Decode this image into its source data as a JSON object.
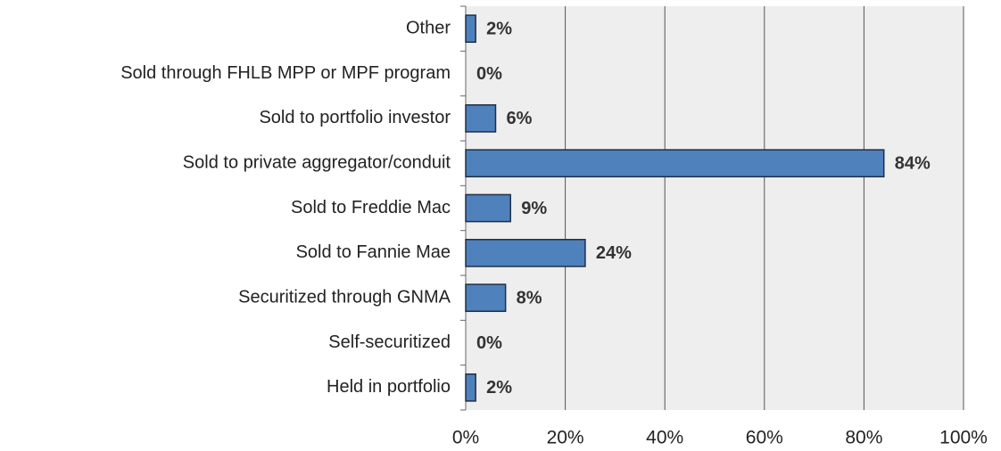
{
  "chart_data": {
    "type": "barh",
    "categories": [
      "Other",
      "Sold through FHLB MPP or MPF program",
      "Sold to portfolio investor",
      "Sold to private aggregator/conduit",
      "Sold to Freddie Mac",
      "Sold to Fannie Mae",
      "Securitized through GNMA",
      "Self-securitized",
      "Held in portfolio"
    ],
    "values": [
      2,
      0,
      6,
      84,
      9,
      24,
      8,
      0,
      2
    ],
    "value_labels": [
      "2%",
      "0%",
      "6%",
      "84%",
      "9%",
      "24%",
      "8%",
      "0%",
      "2%"
    ],
    "color": "#4f81bd",
    "xlim": [
      0,
      100
    ],
    "xticks": [
      {
        "value": 0,
        "label": "0%"
      },
      {
        "value": 20,
        "label": "20%"
      },
      {
        "value": 40,
        "label": "40%"
      },
      {
        "value": 60,
        "label": "60%"
      },
      {
        "value": 80,
        "label": "80%"
      },
      {
        "value": 100,
        "label": "100%"
      }
    ],
    "grid": true
  }
}
